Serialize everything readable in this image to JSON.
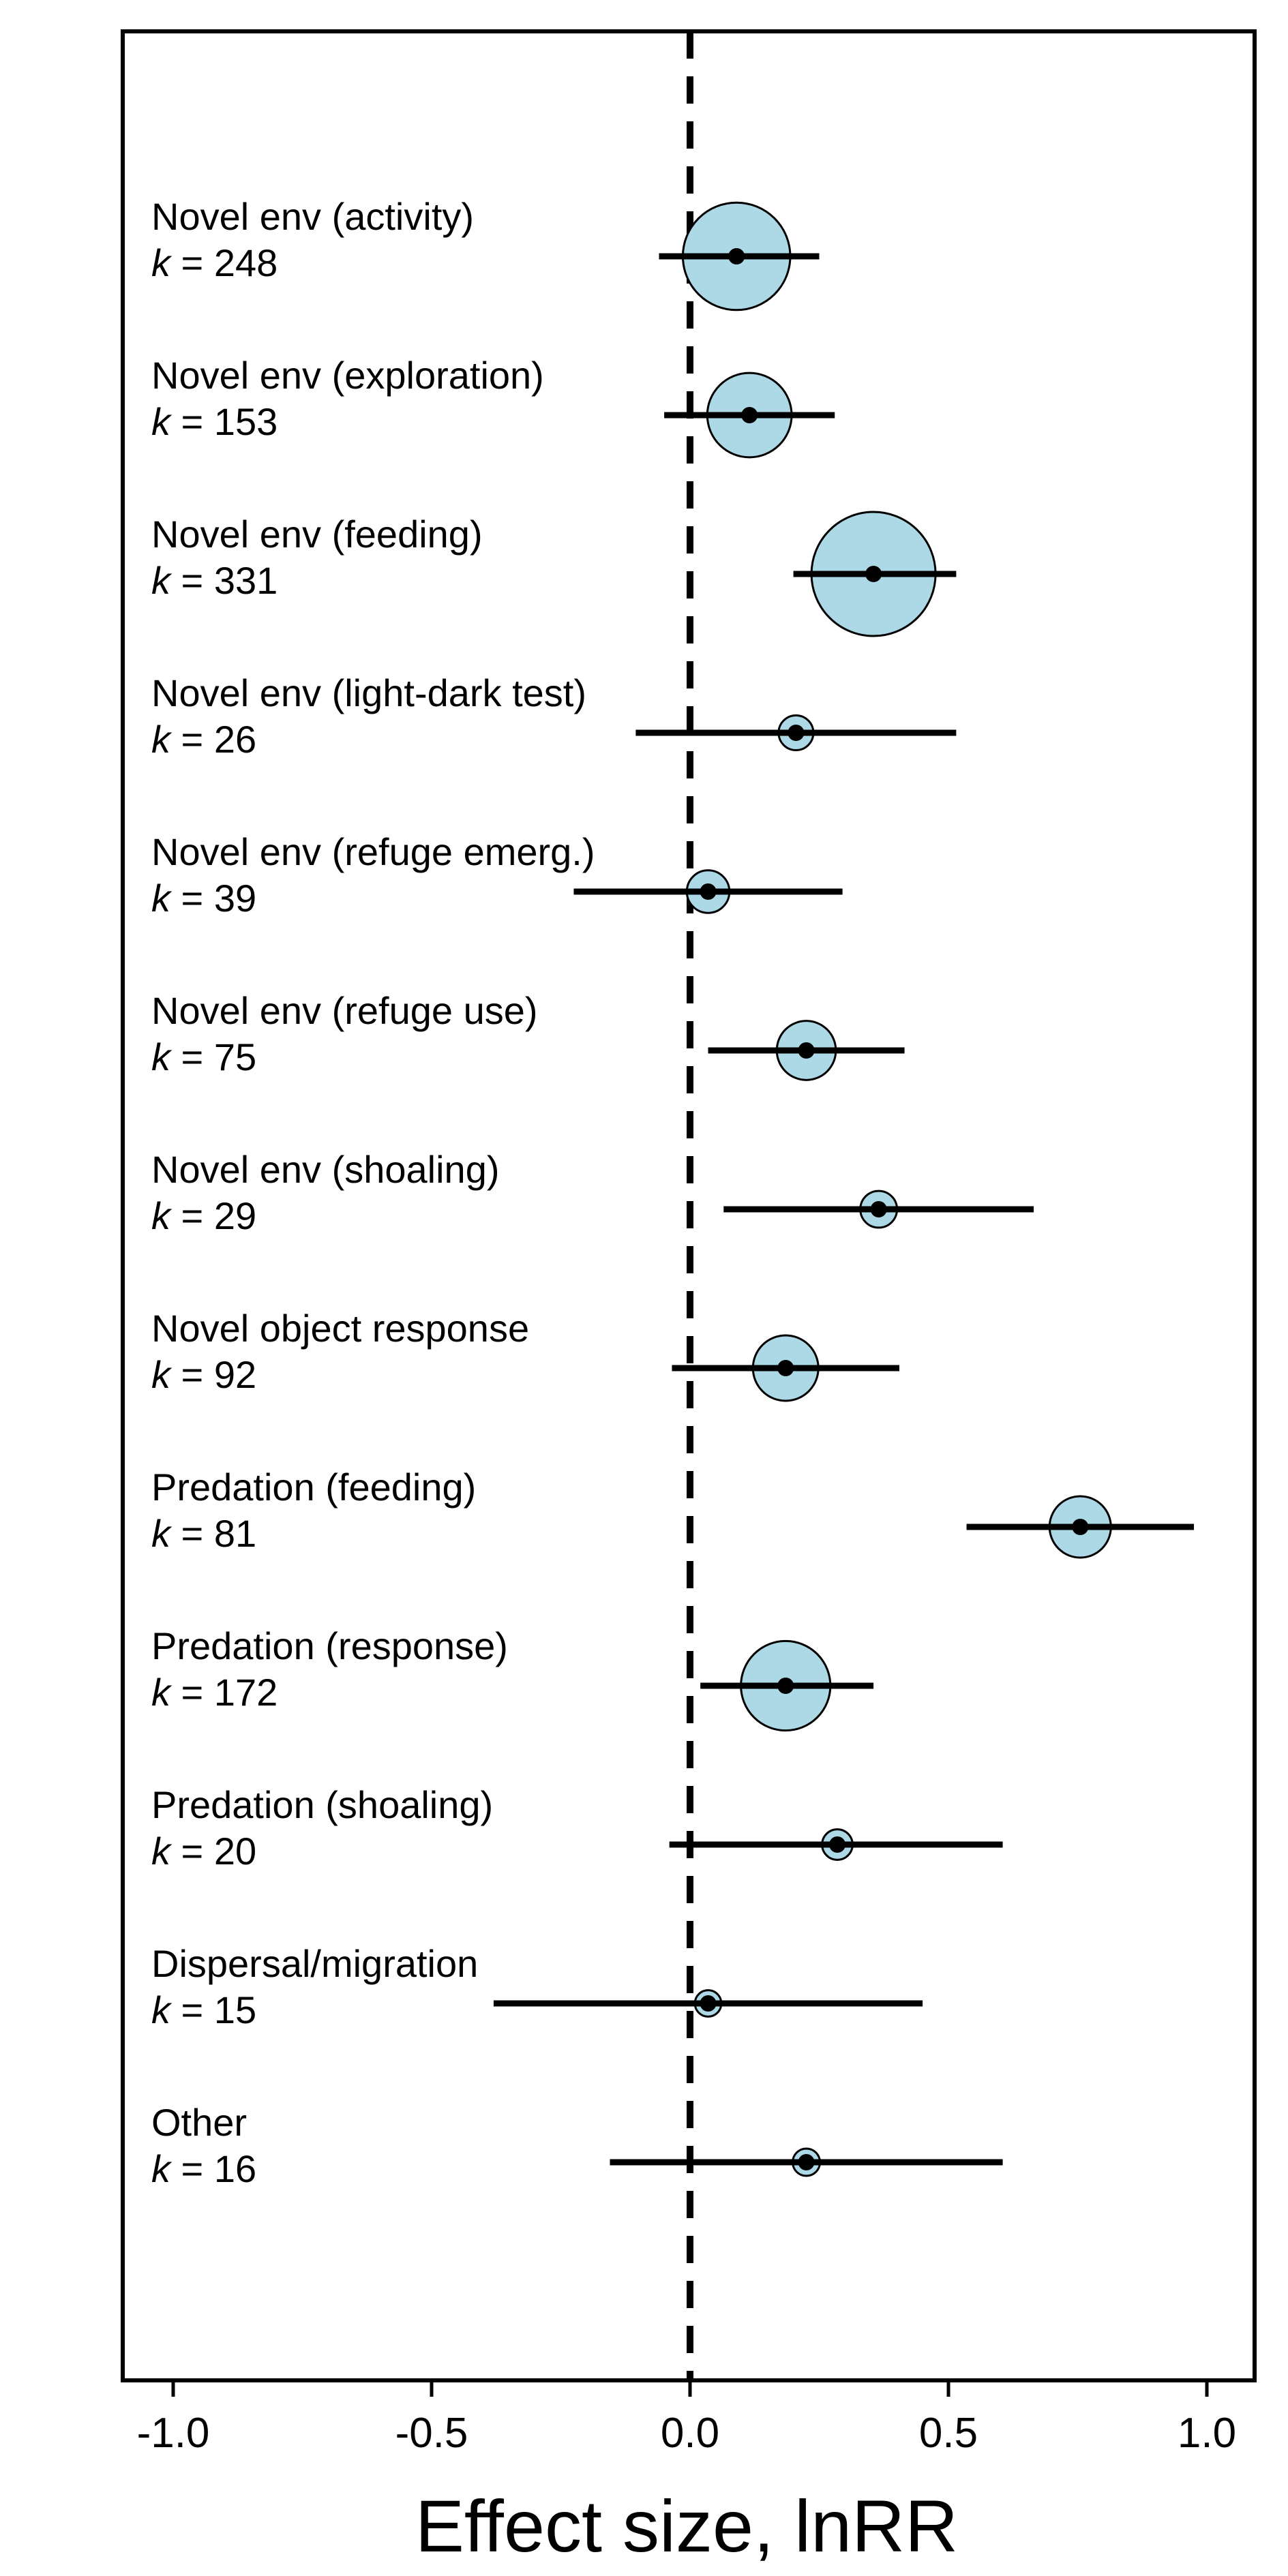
{
  "chart_data": {
    "type": "forest",
    "title": "",
    "xlabel": "Effect size, lnRR",
    "ylabel": "",
    "xlim": [
      -1.1,
      1.1
    ],
    "xticks": [
      -1.0,
      -0.5,
      0.0,
      0.5,
      1.0
    ],
    "xtick_labels": [
      "-1.0",
      "-0.5",
      "0.0",
      "0.5",
      "1.0"
    ],
    "reference_line": 0.0,
    "colors": {
      "point_fill": "#add8e6",
      "line": "#000000"
    },
    "k_prefix": "k",
    "rows": [
      {
        "name": "Novel env (activity)",
        "k_label": "= 248",
        "k": 248,
        "estimate": 0.09,
        "ci_low": -0.06,
        "ci_high": 0.25
      },
      {
        "name": "Novel env (exploration)",
        "k_label": "= 153",
        "k": 153,
        "estimate": 0.115,
        "ci_low": -0.05,
        "ci_high": 0.28
      },
      {
        "name": "Novel env (feeding)",
        "k_label": "= 331",
        "k": 331,
        "estimate": 0.355,
        "ci_low": 0.2,
        "ci_high": 0.515
      },
      {
        "name": "Novel env (light-dark test)",
        "k_label": "= 26",
        "k": 26,
        "estimate": 0.205,
        "ci_low": -0.105,
        "ci_high": 0.515
      },
      {
        "name": "Novel env (refuge emerg.)",
        "k_label": "= 39",
        "k": 39,
        "estimate": 0.035,
        "ci_low": -0.225,
        "ci_high": 0.295
      },
      {
        "name": "Novel env (refuge use)",
        "k_label": "= 75",
        "k": 75,
        "estimate": 0.225,
        "ci_low": 0.035,
        "ci_high": 0.415
      },
      {
        "name": "Novel env (shoaling)",
        "k_label": "= 29",
        "k": 29,
        "estimate": 0.365,
        "ci_low": 0.065,
        "ci_high": 0.665
      },
      {
        "name": "Novel object response",
        "k_label": "= 92",
        "k": 92,
        "estimate": 0.185,
        "ci_low": -0.035,
        "ci_high": 0.405
      },
      {
        "name": "Predation (feeding)",
        "k_label": "= 81",
        "k": 81,
        "estimate": 0.755,
        "ci_low": 0.535,
        "ci_high": 0.975
      },
      {
        "name": "Predation (response)",
        "k_label": "= 172",
        "k": 172,
        "estimate": 0.185,
        "ci_low": 0.02,
        "ci_high": 0.355
      },
      {
        "name": "Predation (shoaling)",
        "k_label": "= 20",
        "k": 20,
        "estimate": 0.285,
        "ci_low": -0.04,
        "ci_high": 0.605
      },
      {
        "name": "Dispersal/migration",
        "k_label": "= 15",
        "k": 15,
        "estimate": 0.035,
        "ci_low": -0.38,
        "ci_high": 0.45
      },
      {
        "name": "Other",
        "k_label": "= 16",
        "k": 16,
        "estimate": 0.225,
        "ci_low": -0.155,
        "ci_high": 0.605
      }
    ]
  }
}
